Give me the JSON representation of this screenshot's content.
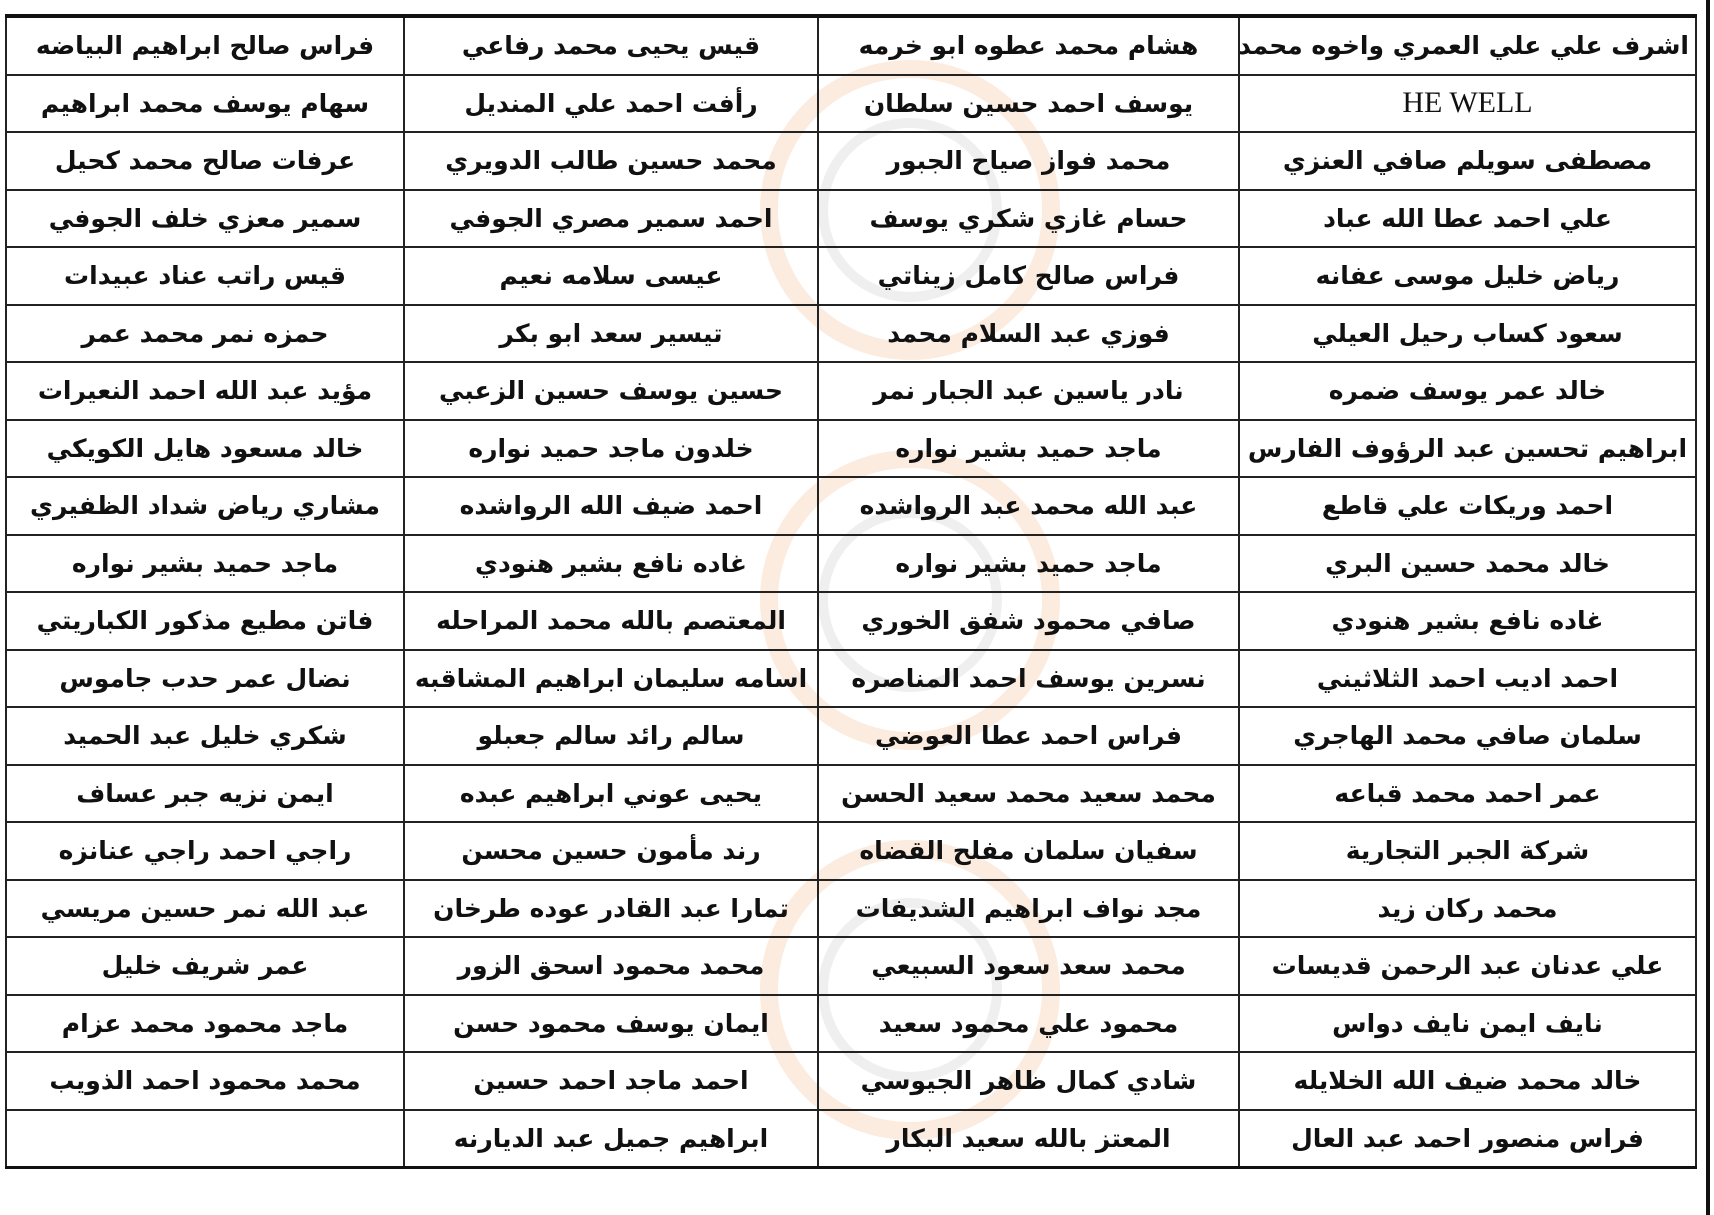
{
  "rows": [
    [
      "اشرف علي علي العمري واخوه محمد",
      "هشام محمد عطوه ابو خرمه",
      "قيس يحيى محمد رفاعي",
      "فراس صالح ابراهيم البياضه"
    ],
    [
      "HE WELL",
      "يوسف احمد حسين سلطان",
      "رأفت احمد علي المنديل",
      "سهام يوسف محمد ابراهيم"
    ],
    [
      "مصطفى سويلم صافي العنزي",
      "محمد فواز صياح الجبور",
      "محمد حسين طالب الدويري",
      "عرفات صالح محمد كحيل"
    ],
    [
      "علي احمد عطا الله عباد",
      "حسام غازي شكري يوسف",
      "احمد سمير مصري الجوفي",
      "سمير معزي خلف الجوفي"
    ],
    [
      "رياض خليل موسى عفانه",
      "فراس صالح كامل زيناتي",
      "عيسى سلامه نعيم",
      "قيس راتب عناد عبيدات"
    ],
    [
      "سعود كساب رحيل العيلي",
      "فوزي عبد السلام محمد",
      "تيسير سعد ابو بكر",
      "حمزه نمر محمد عمر"
    ],
    [
      "خالد عمر يوسف ضمره",
      "نادر ياسين عبد الجبار نمر",
      "حسين يوسف حسين الزعبي",
      "مؤيد عبد الله احمد النعيرات"
    ],
    [
      "ابراهيم تحسين عبد الرؤوف الفارس",
      "ماجد حميد بشير نواره",
      "خلدون ماجد حميد نواره",
      "خالد مسعود هايل الكويكي"
    ],
    [
      "احمد وريكات علي قاطع",
      "عبد الله محمد عبد الرواشده",
      "احمد ضيف الله الرواشده",
      "مشاري رياض شداد الظفيري"
    ],
    [
      "خالد محمد حسين البري",
      "ماجد حميد بشير نواره",
      "غاده نافع بشير هنودي",
      "ماجد حميد بشير نواره"
    ],
    [
      "غاده نافع بشير هنودي",
      "صافي محمود شفق الخوري",
      "المعتصم بالله محمد المراحله",
      "فاتن مطيع مذكور الكباريتي"
    ],
    [
      "احمد اديب احمد الثلاثيني",
      "نسرين يوسف احمد المناصره",
      "اسامه سليمان ابراهيم المشاقبه",
      "نضال عمر حدب جاموس"
    ],
    [
      "سلمان صافي محمد الهاجري",
      "فراس احمد عطا العوضي",
      "سالم رائد سالم جعبلو",
      "شكري خليل عبد الحميد"
    ],
    [
      "عمر احمد محمد قباعه",
      "محمد سعيد محمد سعيد الحسن",
      "يحيى عوني ابراهيم عبده",
      "ايمن نزيه جبر عساف"
    ],
    [
      "شركة الجبر التجارية",
      "سفيان سلمان مفلح القضاه",
      "رند مأمون حسين محسن",
      "راجي احمد راجي عنانزه"
    ],
    [
      "محمد ركان زيد",
      "مجد نواف ابراهيم الشديفات",
      "تمارا عبد القادر عوده طرخان",
      "عبد الله نمر حسين مريسي"
    ],
    [
      "علي عدنان عبد الرحمن قديسات",
      "محمد سعد سعود السبيعي",
      "محمد محمود اسحق الزور",
      "عمر شريف خليل"
    ],
    [
      "نايف ايمن نايف دواس",
      "محمود علي محمود سعيد",
      "ايمان يوسف محمود حسن",
      "ماجد محمود محمد عزام"
    ],
    [
      "خالد محمد ضيف الله الخلايله",
      "شادي كمال ظاهر الجيوسي",
      "احمد ماجد احمد حسين",
      "محمد محمود احمد الذويب"
    ],
    [
      "فراس منصور احمد عبد العال",
      "المعتز بالله سعيد البكار",
      "ابراهيم جميل عبد الديارنه",
      ""
    ]
  ],
  "watermark_color": "#f0a060"
}
